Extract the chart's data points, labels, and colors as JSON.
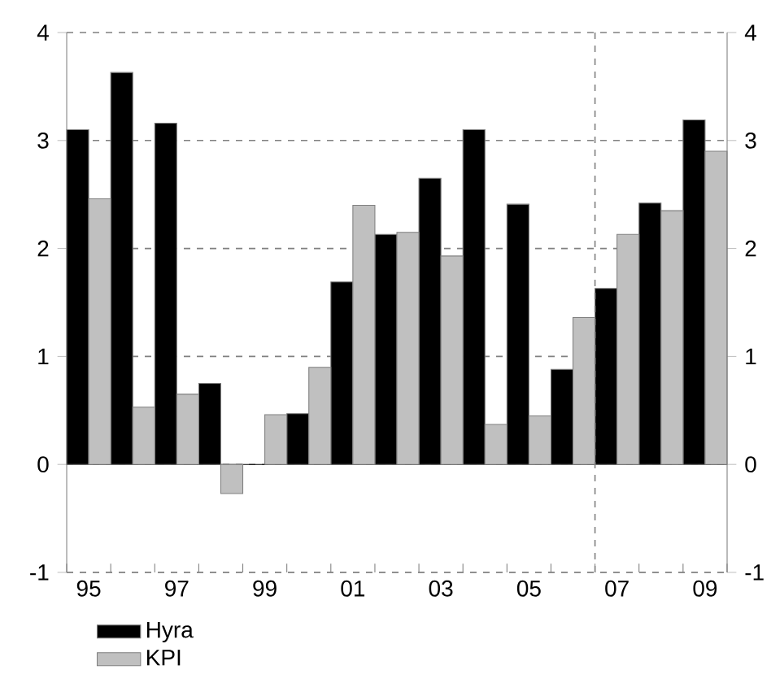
{
  "chart_data": {
    "type": "bar",
    "x": [
      1995,
      1996,
      1997,
      1998,
      1999,
      2000,
      2001,
      2002,
      2003,
      2004,
      2005,
      2006,
      2007,
      2008,
      2009
    ],
    "xlim": [
      1994.5,
      2009.5
    ],
    "xticks": [
      {
        "value": 1995,
        "label": "95"
      },
      {
        "value": 1997,
        "label": "97"
      },
      {
        "value": 1999,
        "label": "99"
      },
      {
        "value": 2001,
        "label": "01"
      },
      {
        "value": 2003,
        "label": "03"
      },
      {
        "value": 2005,
        "label": "05"
      },
      {
        "value": 2007,
        "label": "07"
      },
      {
        "value": 2009,
        "label": "09"
      }
    ],
    "ylim": [
      -1,
      4
    ],
    "yticks": [
      -1,
      0,
      1,
      2,
      3,
      4
    ],
    "y2lim": [
      -1,
      4
    ],
    "y2ticks": [
      -1,
      0,
      1,
      2,
      3,
      4
    ],
    "grid": "y",
    "legend": "bottom",
    "ref_lines": [
      {
        "axis": "x",
        "value": 2006.5,
        "line_style": "dashed",
        "color": "#808080"
      }
    ],
    "series": [
      {
        "name": "Hyra",
        "color": "#000000",
        "values": [
          3.1,
          3.63,
          3.16,
          0.75,
          null,
          0.47,
          1.69,
          2.13,
          2.65,
          3.1,
          2.41,
          0.88,
          1.63,
          2.42,
          3.19
        ]
      },
      {
        "name": "KPI",
        "color": "#c0c0c0",
        "values": [
          2.46,
          0.53,
          0.65,
          -0.27,
          0.46,
          0.9,
          2.4,
          2.15,
          1.93,
          0.37,
          0.45,
          1.36,
          2.13,
          2.35,
          2.9
        ]
      }
    ]
  }
}
